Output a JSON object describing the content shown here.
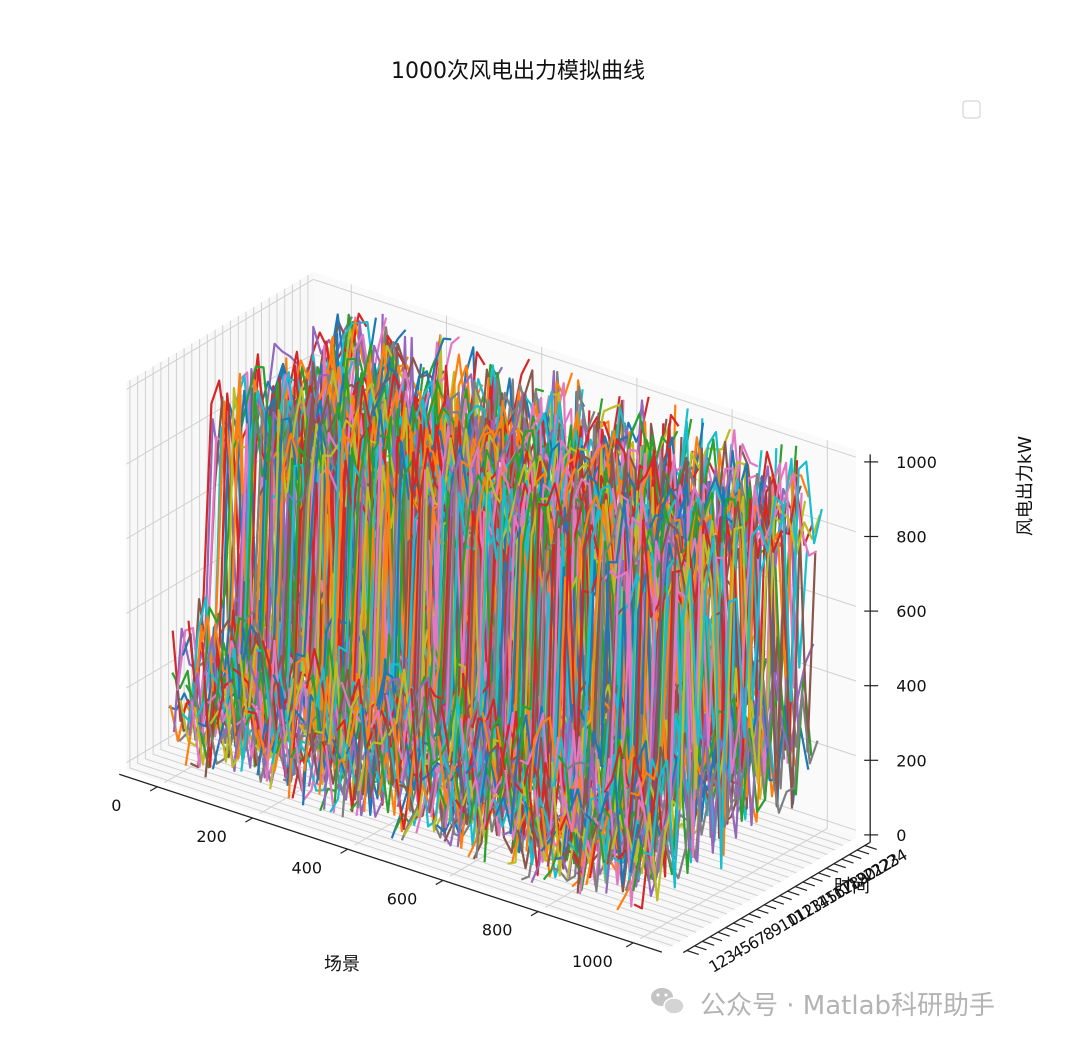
{
  "chart_data": {
    "type": "line",
    "projection": "3d",
    "title": "1000次风电出力模拟曲线",
    "xlabel": "场景",
    "ylabel": "时间",
    "zlabel": "风电出力kW",
    "x_ticks": [
      "0",
      "200",
      "400",
      "600",
      "800",
      "1000"
    ],
    "y_ticks": [
      "1",
      "2",
      "3",
      "4",
      "5",
      "6",
      "7",
      "8",
      "9",
      "10",
      "11",
      "12",
      "13",
      "14",
      "15",
      "16",
      "17",
      "18",
      "19",
      "20",
      "21",
      "22",
      "23",
      "24"
    ],
    "z_ticks": [
      "0",
      "200",
      "400",
      "600",
      "800",
      "1000"
    ],
    "xlim": [
      0,
      1000
    ],
    "ylim": [
      1,
      24
    ],
    "zlim": [
      0,
      1000
    ],
    "num_scenarios": 1000,
    "hours": 24,
    "grid": true,
    "legend": "top-right",
    "legend_entries": [],
    "series_colors": [
      "#1f77b4",
      "#ff7f0e",
      "#2ca02c",
      "#d62728",
      "#9467bd",
      "#8c564b",
      "#e377c2",
      "#7f7f7f",
      "#bcbd22",
      "#17becf"
    ]
  },
  "watermark": {
    "icon": "wechat-icon",
    "text": "公众号 · Matlab科研助手"
  }
}
